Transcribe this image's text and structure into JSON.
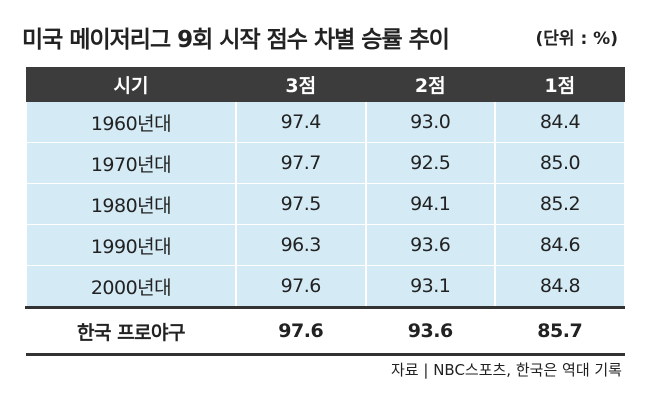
{
  "title": "미국 메이저리그 9회 시작 점수 차별 승률 추이",
  "unit": "(단위 : %)",
  "table": {
    "header": [
      "시기",
      "3점",
      "2점",
      "1점"
    ],
    "rows": [
      [
        "1960년대",
        "97.4",
        "93.0",
        "84.4"
      ],
      [
        "1970년대",
        "97.7",
        "92.5",
        "85.0"
      ],
      [
        "1980년대",
        "97.5",
        "94.1",
        "85.2"
      ],
      [
        "1990년대",
        "96.3",
        "93.6",
        "84.6"
      ],
      [
        "2000년대",
        "97.6",
        "93.1",
        "84.8"
      ],
      [
        "한국 프로야구",
        "97.6",
        "93.6",
        "85.7"
      ]
    ]
  },
  "source": "자료 | NBC스포츠, 한국은 역대 기록"
}
